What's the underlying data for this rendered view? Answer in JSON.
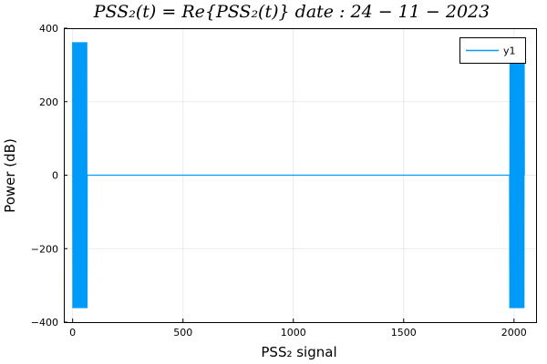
{
  "chart_data": {
    "type": "line",
    "title": "PSS₂(t) = Re{PSS₂(t)}      date : 24 − 11 − 2023",
    "xlabel": "PSS₂ signal",
    "ylabel": "Power (dB)",
    "xlim": [
      -40,
      2100
    ],
    "ylim": [
      -400,
      400
    ],
    "x_ticks": [
      0,
      500,
      1000,
      1500,
      2000
    ],
    "y_ticks": [
      -400,
      -200,
      0,
      200,
      400
    ],
    "x_tick_labels": [
      "0",
      "500",
      "1000",
      "1500",
      "2000"
    ],
    "y_tick_labels": [
      "−400",
      "−200",
      "0",
      "200",
      "400"
    ],
    "grid": true,
    "legend_position": "top-right",
    "series": [
      {
        "name": "y1",
        "color": "#009af9",
        "x": [
          0,
          1,
          2,
          3,
          4,
          5,
          6,
          7,
          8,
          9,
          10,
          11,
          12,
          13,
          14,
          15,
          16,
          17,
          18,
          19,
          20,
          21,
          22,
          23,
          24,
          25,
          26,
          27,
          28,
          29,
          30,
          31,
          32,
          33,
          34,
          35,
          36,
          37,
          38,
          39,
          40,
          41,
          42,
          43,
          44,
          45,
          46,
          47,
          48,
          49,
          50,
          51,
          52,
          53,
          54,
          55,
          56,
          57,
          58,
          59,
          60,
          61,
          62,
          63,
          64,
          65,
          66,
          1980,
          1981,
          1982,
          1983,
          1984,
          1985,
          1986,
          1987,
          1988,
          1989,
          1990,
          1991,
          1992,
          1993,
          1994,
          1995,
          1996,
          1997,
          1998,
          1999,
          2000,
          2001,
          2002,
          2003,
          2004,
          2005,
          2006,
          2007,
          2008,
          2009,
          2010,
          2011,
          2012,
          2013,
          2014,
          2015,
          2016,
          2017,
          2018,
          2019,
          2020,
          2021,
          2022,
          2023,
          2024,
          2025,
          2026,
          2027,
          2028,
          2029,
          2030,
          2031,
          2032,
          2033,
          2034,
          2035,
          2036,
          2037,
          2038,
          2039,
          2040,
          2041,
          2042,
          2043,
          2044,
          2045,
          2046,
          2047
        ],
        "y": [
          362,
          -362,
          362,
          -362,
          362,
          -362,
          362,
          -362,
          362,
          -362,
          362,
          -362,
          362,
          -362,
          362,
          -362,
          362,
          -362,
          362,
          -362,
          362,
          -362,
          362,
          -362,
          362,
          -362,
          362,
          -362,
          362,
          -362,
          362,
          -362,
          362,
          -362,
          362,
          -362,
          362,
          -362,
          362,
          -362,
          362,
          -362,
          362,
          -362,
          362,
          -362,
          362,
          -362,
          362,
          -362,
          362,
          -362,
          362,
          -362,
          362,
          -362,
          362,
          -362,
          362,
          -362,
          362,
          -362,
          362,
          -362,
          362,
          -362,
          0,
          0,
          -362,
          362,
          -362,
          362,
          -362,
          362,
          -362,
          362,
          -362,
          362,
          -362,
          362,
          -362,
          362,
          -362,
          362,
          -362,
          362,
          -362,
          362,
          -362,
          362,
          -362,
          362,
          -362,
          362,
          -362,
          362,
          -362,
          362,
          -362,
          362,
          -362,
          362,
          -362,
          362,
          -362,
          362,
          -362,
          362,
          -362,
          362,
          -362,
          362,
          -362,
          362,
          -362,
          362,
          -362,
          362,
          -362,
          362,
          -362,
          362,
          -362,
          362,
          -362,
          362,
          -362,
          362,
          -362,
          362,
          -362,
          362,
          -362,
          362,
          0
        ]
      }
    ]
  }
}
